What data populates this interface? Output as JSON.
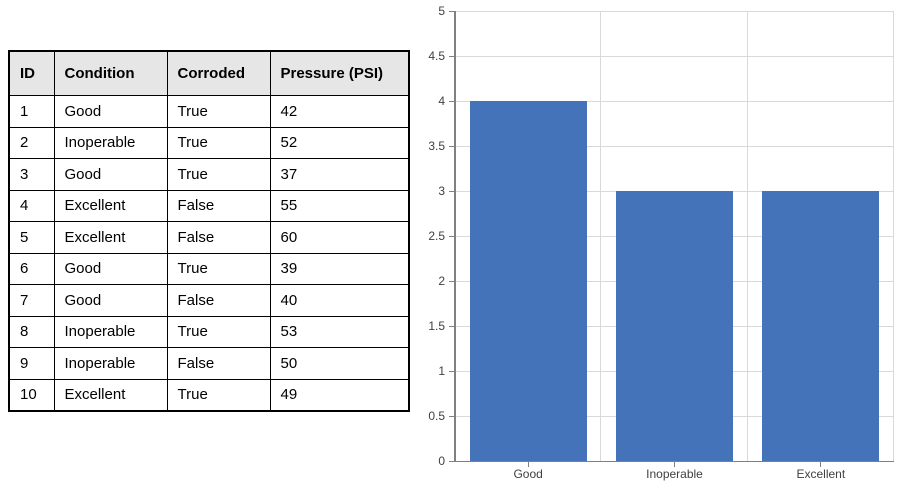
{
  "table": {
    "columns": [
      "ID",
      "Condition",
      "Corroded",
      "Pressure (PSI)"
    ],
    "rows": [
      [
        "1",
        "Good",
        "True",
        "42"
      ],
      [
        "2",
        "Inoperable",
        "True",
        "52"
      ],
      [
        "3",
        "Good",
        "True",
        "37"
      ],
      [
        "4",
        "Excellent",
        "False",
        "55"
      ],
      [
        "5",
        "Excellent",
        "False",
        "60"
      ],
      [
        "6",
        "Good",
        "True",
        "39"
      ],
      [
        "7",
        "Good",
        "False",
        "40"
      ],
      [
        "8",
        "Inoperable",
        "True",
        "53"
      ],
      [
        "9",
        "Inoperable",
        "False",
        "50"
      ],
      [
        "10",
        "Excellent",
        "True",
        "49"
      ]
    ],
    "header_bg": "#e7e6e6",
    "border_color": "#000000"
  },
  "chart_data": {
    "type": "bar",
    "categories": [
      "Good",
      "Inoperable",
      "Excellent"
    ],
    "values": [
      4,
      3,
      3
    ],
    "title": "",
    "xlabel": "",
    "ylabel": "",
    "ylim": [
      0,
      5
    ],
    "ytick_step": 0.5,
    "ytick_labels": [
      "0",
      "0.5",
      "1",
      "1.5",
      "2",
      "2.5",
      "3",
      "3.5",
      "4",
      "4.5",
      "5"
    ],
    "grid": "on",
    "legend": "none",
    "bar_color": "#4473b9",
    "gridline_color": "#d9d9d9",
    "axis_color": "#808080",
    "label_color": "#404040"
  }
}
